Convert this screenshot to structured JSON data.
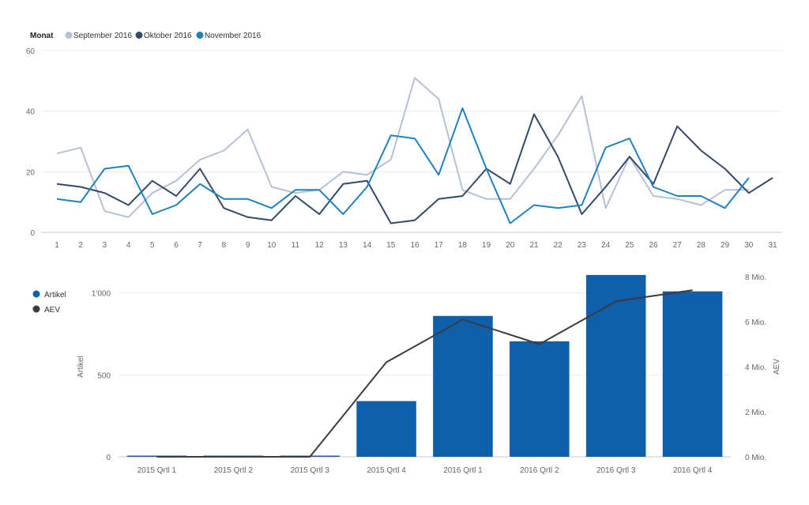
{
  "chart_data": [
    {
      "type": "line",
      "legend_title": "Monat",
      "legend_position": "top-left",
      "x": [
        1,
        2,
        3,
        4,
        5,
        6,
        7,
        8,
        9,
        10,
        11,
        12,
        13,
        14,
        15,
        16,
        17,
        18,
        19,
        20,
        21,
        22,
        23,
        24,
        25,
        26,
        27,
        28,
        29,
        30,
        31
      ],
      "ylim": [
        0,
        60
      ],
      "yticks": [
        0,
        20,
        40,
        60
      ],
      "grid": true,
      "series": [
        {
          "name": "September 2016",
          "color": "#b8c0d6",
          "values": [
            26,
            28,
            7,
            5,
            13,
            17,
            24,
            27,
            34,
            15,
            13,
            14,
            20,
            19,
            24,
            51,
            44,
            14,
            11,
            11,
            21,
            32,
            45,
            8,
            25,
            12,
            11,
            9,
            14,
            14,
            null
          ]
        },
        {
          "name": "Oktober 2016",
          "color": "#344a6a",
          "values": [
            16,
            15,
            13,
            9,
            17,
            12,
            21,
            8,
            5,
            4,
            12,
            6,
            16,
            17,
            3,
            4,
            11,
            12,
            21,
            16,
            39,
            25,
            6,
            15,
            25,
            16,
            35,
            27,
            21,
            13,
            18
          ]
        },
        {
          "name": "November 2016",
          "color": "#1f82c0",
          "values": [
            11,
            10,
            21,
            22,
            6,
            9,
            16,
            11,
            11,
            8,
            14,
            14,
            6,
            15,
            32,
            31,
            19,
            41,
            21,
            3,
            9,
            8,
            9,
            28,
            31,
            15,
            12,
            12,
            8,
            18,
            null
          ]
        }
      ]
    },
    {
      "type": "bar",
      "combo": "bar-line",
      "legend_position": "top-left",
      "categories": [
        "2015 Qrtl 1",
        "2015 Qrtl 2",
        "2015 Qrtl 3",
        "2015 Qrtl 4",
        "2016 Qrtl 1",
        "2016 Qrtl 2",
        "2016 Qrtl 3",
        "2016 Qrtl 4"
      ],
      "ylabel": "Artikel",
      "ylabel_right": "AEV",
      "ylim": [
        0,
        1100
      ],
      "yticks": [
        0,
        500,
        1000
      ],
      "ytick_labels": [
        "0",
        "500",
        "1'000"
      ],
      "ylim_right": [
        0,
        8000000
      ],
      "yticks_right": [
        0,
        2000000,
        4000000,
        6000000,
        8000000
      ],
      "ytick_labels_right": [
        "0 Mio.",
        "2 Mio.",
        "4 Mio.",
        "6 Mio.",
        "8 Mio."
      ],
      "grid": true,
      "series": [
        {
          "name": "Artikel",
          "color": "#0f5fab",
          "axis": "left",
          "kind": "bar",
          "values": [
            1,
            0,
            1,
            340,
            860,
            705,
            1110,
            1010
          ]
        },
        {
          "name": "AEV",
          "color": "#3c3c3c",
          "axis": "right",
          "kind": "line",
          "values": [
            0,
            0,
            0,
            4200000,
            6100000,
            5000000,
            6900000,
            7400000
          ]
        }
      ]
    }
  ]
}
